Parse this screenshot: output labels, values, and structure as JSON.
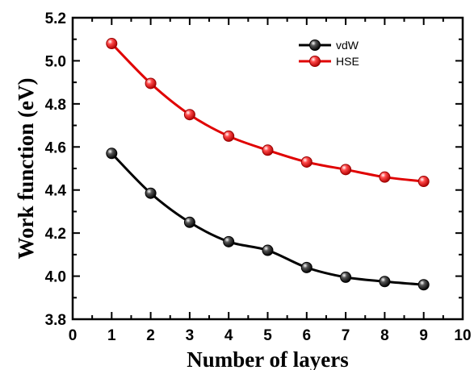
{
  "chart_data": {
    "type": "line",
    "title": "",
    "xlabel": "Number of layers",
    "ylabel": "Work function (eV)",
    "xlim": [
      0,
      10
    ],
    "ylim": [
      3.8,
      5.2
    ],
    "xticks": [
      0,
      1,
      2,
      3,
      4,
      5,
      6,
      7,
      8,
      9,
      10
    ],
    "yticks": [
      3.8,
      4.0,
      4.2,
      4.4,
      4.6,
      4.8,
      5.0,
      5.2
    ],
    "xtick_labels": [
      "0",
      "1",
      "2",
      "3",
      "4",
      "5",
      "6",
      "7",
      "8",
      "9",
      "10"
    ],
    "ytick_labels": [
      "3.8",
      "4.0",
      "4.2",
      "4.4",
      "4.6",
      "4.8",
      "5.0",
      "5.2"
    ],
    "grid": false,
    "legend_position": "top-right",
    "series": [
      {
        "name": "vdW",
        "color": "#000000",
        "x": [
          1,
          2,
          3,
          4,
          5,
          6,
          7,
          8,
          9
        ],
        "y": [
          4.57,
          4.385,
          4.25,
          4.16,
          4.12,
          4.04,
          3.995,
          3.975,
          3.96
        ]
      },
      {
        "name": "HSE",
        "color": "#e00000",
        "x": [
          1,
          2,
          3,
          4,
          5,
          6,
          7,
          8,
          9
        ],
        "y": [
          5.08,
          4.895,
          4.75,
          4.65,
          4.585,
          4.53,
          4.495,
          4.46,
          4.44
        ]
      }
    ]
  }
}
